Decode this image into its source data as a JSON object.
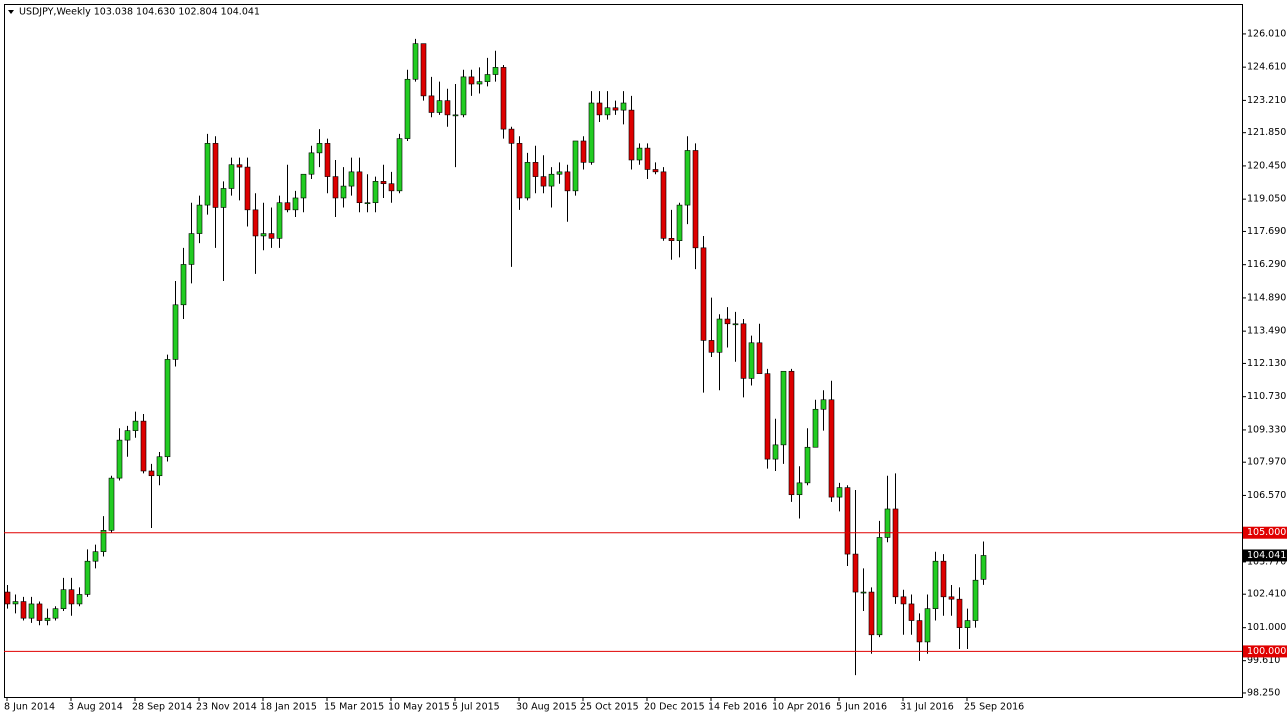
{
  "chart_data": {
    "type": "candlestick",
    "title": "USDJPY,Weekly  103.038 104.630 102.804 104.041",
    "categories": [
      "8 Jun 2014",
      null,
      null,
      null,
      null,
      null,
      null,
      null,
      "3 Aug 2014",
      null,
      null,
      null,
      null,
      null,
      null,
      null,
      "28 Sep 2014",
      null,
      null,
      null,
      null,
      null,
      null,
      null,
      "23 Nov 2014",
      null,
      null,
      null,
      null,
      null,
      null,
      null,
      "18 Jan 2015",
      null,
      null,
      null,
      null,
      null,
      null,
      null,
      "15 Mar 2015",
      null,
      null,
      null,
      null,
      null,
      null,
      null,
      "10 May 2015",
      null,
      null,
      null,
      null,
      null,
      null,
      null,
      "5 Jul 2015",
      null,
      null,
      null,
      null,
      null,
      null,
      null,
      "30 Aug 2015",
      null,
      null,
      null,
      null,
      null,
      null,
      null,
      "25 Oct 2015",
      null,
      null,
      null,
      null,
      null,
      null,
      null,
      "20 Dec 2015",
      null,
      null,
      null,
      null,
      null,
      null,
      null,
      "14 Feb 2016",
      null,
      null,
      null,
      null,
      null,
      null,
      null,
      "10 Apr 2016",
      null,
      null,
      null,
      null,
      null,
      null,
      null,
      "5 Jun 2016",
      null,
      null,
      null,
      null,
      null,
      null,
      null,
      "31 Jul 2016",
      null,
      null,
      null,
      null,
      null,
      null,
      null,
      "25 Sep 2016",
      null,
      null
    ],
    "open": [
      102.5,
      102.0,
      102.1,
      101.4,
      102.0,
      101.3,
      101.4,
      101.8,
      102.6,
      102.0,
      102.4,
      103.8,
      104.2,
      105.1,
      107.3,
      108.9,
      109.3,
      109.7,
      107.6,
      107.4,
      108.2,
      112.3,
      114.6,
      116.3,
      117.6,
      118.8,
      121.4,
      118.7,
      119.5,
      120.5,
      120.4,
      118.6,
      117.5,
      117.6,
      117.4,
      118.9,
      118.6,
      119.1,
      120.1,
      121.0,
      121.4,
      120.0,
      119.1,
      119.6,
      120.2,
      118.9,
      118.9,
      119.8,
      119.7,
      119.4,
      121.6,
      124.1,
      125.6,
      123.4,
      122.7,
      123.2,
      122.6,
      122.6,
      124.2,
      123.9,
      124.0,
      124.3,
      124.6,
      122.0,
      121.4,
      119.1,
      120.6,
      120.0,
      119.6,
      120.1,
      120.2,
      119.4,
      121.5,
      120.6,
      123.1,
      122.6,
      122.9,
      122.8,
      122.8,
      120.7,
      121.2,
      120.3,
      120.2,
      117.4,
      117.3,
      118.8,
      121.1,
      117.0,
      113.1,
      112.6,
      114.0,
      113.8,
      113.8,
      111.5,
      113.0,
      111.7,
      108.1,
      108.7,
      111.8,
      106.6,
      107.1,
      108.6,
      110.2,
      110.6,
      106.5,
      106.9,
      104.1,
      102.5,
      102.5,
      100.7,
      104.8,
      106.0,
      102.3,
      102.0,
      101.3,
      100.4,
      101.8,
      103.8,
      102.3,
      102.2,
      101.0,
      101.3,
      103.038
    ],
    "high": [
      102.8,
      102.4,
      102.3,
      102.3,
      102.1,
      101.8,
      101.9,
      103.1,
      103.1,
      102.7,
      104.3,
      104.5,
      105.7,
      107.4,
      109.4,
      109.5,
      110.1,
      110.0,
      107.9,
      108.4,
      112.5,
      115.6,
      117.0,
      118.9,
      119.2,
      121.8,
      121.7,
      119.8,
      120.8,
      120.8,
      120.8,
      119.3,
      118.9,
      118.7,
      119.2,
      120.5,
      119.4,
      120.1,
      121.3,
      122.0,
      121.6,
      120.7,
      120.4,
      120.8,
      120.8,
      120.1,
      120.0,
      120.5,
      120.2,
      121.8,
      124.5,
      125.8,
      125.6,
      124.2,
      124.0,
      123.7,
      123.9,
      124.5,
      124.5,
      124.6,
      125.0,
      125.3,
      124.7,
      122.1,
      121.7,
      121.0,
      121.3,
      120.9,
      120.4,
      120.6,
      120.5,
      121.5,
      121.7,
      123.6,
      123.6,
      123.6,
      123.2,
      123.6,
      123.4,
      121.4,
      121.4,
      120.6,
      120.4,
      118.6,
      118.9,
      121.7,
      121.4,
      117.5,
      114.9,
      114.2,
      114.5,
      114.3,
      114.0,
      113.3,
      113.8,
      111.9,
      109.8,
      111.8,
      111.9,
      107.8,
      109.4,
      110.6,
      111.0,
      111.4,
      107.1,
      107.0,
      106.8,
      103.5,
      102.7,
      105.5,
      107.4,
      107.5,
      102.6,
      102.4,
      101.6,
      102.4,
      104.2,
      104.1,
      102.8,
      102.7,
      101.8,
      104.1,
      104.63
    ],
    "low": [
      101.8,
      101.6,
      101.3,
      101.2,
      101.1,
      101.1,
      101.3,
      101.7,
      101.5,
      101.9,
      102.3,
      103.5,
      104.0,
      105.0,
      107.2,
      108.2,
      109.0,
      107.5,
      105.2,
      107.0,
      108.0,
      112.0,
      114.0,
      115.5,
      117.2,
      118.4,
      117.0,
      115.6,
      119.2,
      119.0,
      117.9,
      115.9,
      116.9,
      117.0,
      117.0,
      118.5,
      118.3,
      118.5,
      119.9,
      120.4,
      119.3,
      118.3,
      118.7,
      119.2,
      118.5,
      118.5,
      118.5,
      119.1,
      118.9,
      119.3,
      121.5,
      124.0,
      123.2,
      122.5,
      122.6,
      122.1,
      120.4,
      122.5,
      123.4,
      123.5,
      123.8,
      124.0,
      121.6,
      116.2,
      118.6,
      119.0,
      119.3,
      119.3,
      118.7,
      119.7,
      118.1,
      119.2,
      120.3,
      120.5,
      122.3,
      122.4,
      122.6,
      122.2,
      120.3,
      120.5,
      119.9,
      120.1,
      117.3,
      116.5,
      116.6,
      118.0,
      116.1,
      110.9,
      112.4,
      111.0,
      112.8,
      112.2,
      110.7,
      111.2,
      111.7,
      107.7,
      107.6,
      107.9,
      106.3,
      105.6,
      107.0,
      108.6,
      109.3,
      106.3,
      105.9,
      103.6,
      99.0,
      101.7,
      99.9,
      100.6,
      104.6,
      102.0,
      100.7,
      100.7,
      99.6,
      99.9,
      101.3,
      101.5,
      101.5,
      100.1,
      100.1,
      101.0,
      102.804
    ],
    "close": [
      102.0,
      102.1,
      101.4,
      102.0,
      101.3,
      101.4,
      101.8,
      102.6,
      102.0,
      102.4,
      103.8,
      104.2,
      105.1,
      107.3,
      108.9,
      109.3,
      109.7,
      107.6,
      107.4,
      108.2,
      112.3,
      114.6,
      116.3,
      117.6,
      118.8,
      121.4,
      118.7,
      119.5,
      120.5,
      120.4,
      118.6,
      117.5,
      117.6,
      117.4,
      118.9,
      118.6,
      119.1,
      120.1,
      121.0,
      121.4,
      120.0,
      119.1,
      119.6,
      120.2,
      118.9,
      118.9,
      119.8,
      119.7,
      119.4,
      121.6,
      124.1,
      125.6,
      123.4,
      122.7,
      123.2,
      122.6,
      122.6,
      124.2,
      123.9,
      124.0,
      124.3,
      124.6,
      122.0,
      121.4,
      119.1,
      120.6,
      120.0,
      119.6,
      120.1,
      120.2,
      119.4,
      121.5,
      120.6,
      123.1,
      122.6,
      122.9,
      122.8,
      123.1,
      120.7,
      121.2,
      120.3,
      120.2,
      117.4,
      117.3,
      118.8,
      121.1,
      117.0,
      113.1,
      112.6,
      114.0,
      113.8,
      113.8,
      111.5,
      113.0,
      111.7,
      108.1,
      108.7,
      111.8,
      106.6,
      107.1,
      108.6,
      110.2,
      110.6,
      106.5,
      106.9,
      104.1,
      102.5,
      102.5,
      100.7,
      104.8,
      106.0,
      102.3,
      102.0,
      101.3,
      100.4,
      101.8,
      103.8,
      102.3,
      102.2,
      101.0,
      101.3,
      103.0,
      104.041
    ],
    "bull_color": "#22cc22",
    "bear_color": "#dd0000",
    "ylim": [
      98.08,
      127.27
    ],
    "yticks": [
      {
        "value": 126.01,
        "label": "126.010"
      },
      {
        "value": 124.61,
        "label": "124.610"
      },
      {
        "value": 123.21,
        "label": "123.210"
      },
      {
        "value": 121.85,
        "label": "121.850"
      },
      {
        "value": 120.45,
        "label": "120.450"
      },
      {
        "value": 119.05,
        "label": "119.050"
      },
      {
        "value": 117.69,
        "label": "117.690"
      },
      {
        "value": 116.29,
        "label": "116.290"
      },
      {
        "value": 114.89,
        "label": "114.890"
      },
      {
        "value": 113.49,
        "label": "113.490"
      },
      {
        "value": 112.13,
        "label": "112.130"
      },
      {
        "value": 110.73,
        "label": "110.730"
      },
      {
        "value": 109.33,
        "label": "109.330"
      },
      {
        "value": 107.97,
        "label": "107.970"
      },
      {
        "value": 106.57,
        "label": "106.570"
      },
      {
        "value": 103.77,
        "label": "103.770"
      },
      {
        "value": 102.41,
        "label": "102.410"
      },
      {
        "value": 101.0,
        "label": "101.000"
      },
      {
        "value": 99.61,
        "label": "99.610"
      },
      {
        "value": 98.25,
        "label": "98.250"
      }
    ],
    "levels": [
      {
        "value": 105,
        "label": "105.000"
      },
      {
        "value": 100,
        "label": "100.000"
      }
    ],
    "level_color": "#e00000"
  }
}
